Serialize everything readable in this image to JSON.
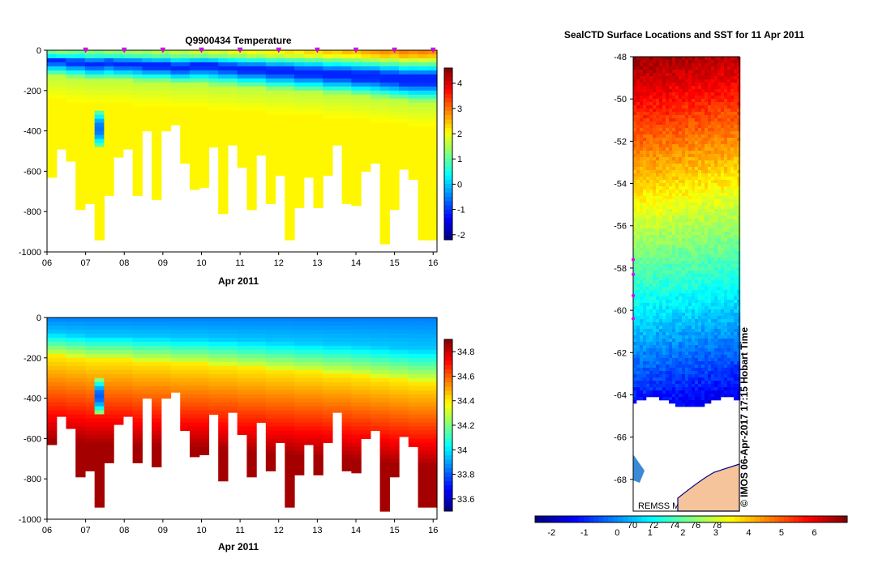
{
  "chart_data": [
    {
      "type": "heatmap",
      "title": "Q9900434  Temperature",
      "xlabel": "Apr 2011",
      "x_ticks": [
        "06",
        "07",
        "08",
        "09",
        "10",
        "11",
        "12",
        "13",
        "14",
        "15",
        "16"
      ],
      "x_range": [
        6,
        16.1
      ],
      "y_ticks": [
        "0",
        "-200",
        "-400",
        "-600",
        "-800",
        "-1000"
      ],
      "y_range": [
        -1000,
        0
      ],
      "colorbar_ticks": [
        "4",
        "3",
        "2",
        "1",
        "0",
        "-1",
        "-2"
      ],
      "colorbar_range": [
        -2.2,
        4.6
      ],
      "surface_markers_days": [
        7,
        8,
        9,
        10,
        11,
        12,
        13,
        14,
        15,
        16
      ],
      "profile_days": [
        6.05,
        6.3,
        6.55,
        6.8,
        7.05,
        7.3,
        7.55,
        7.8,
        8.05,
        8.3,
        8.55,
        8.8,
        9.05,
        9.3,
        9.55,
        9.8,
        10.05,
        10.3,
        10.55,
        10.8,
        11.05,
        11.3,
        11.55,
        11.8,
        12.05,
        12.3,
        12.55,
        12.8,
        13.05,
        13.3,
        13.55,
        13.8,
        14.05,
        14.3,
        14.55,
        14.8,
        15.05,
        15.3,
        15.55,
        15.8,
        16.05
      ],
      "profile_max_depths": [
        630,
        490,
        550,
        790,
        760,
        940,
        720,
        530,
        490,
        720,
        400,
        740,
        400,
        370,
        560,
        690,
        680,
        480,
        810,
        470,
        580,
        790,
        520,
        760,
        620,
        940,
        780,
        630,
        780,
        620,
        470,
        760,
        770,
        600,
        560,
        960,
        790,
        590,
        640,
        940,
        940
      ],
      "surface_temp": [
        1.0,
        1.2,
        1.1,
        1.0,
        1.2,
        1.1,
        1.3,
        1.2,
        1.3,
        1.4,
        1.3,
        1.5,
        1.4,
        1.6,
        1.5,
        1.7,
        1.6,
        1.8,
        1.7,
        1.9,
        1.8,
        2.0,
        1.9,
        2.1,
        2.0,
        2.2,
        2.1,
        2.3,
        2.2,
        2.4,
        2.3,
        2.5,
        2.4,
        2.6,
        2.7,
        2.8,
        2.7,
        2.9,
        2.8,
        2.9,
        2.8
      ],
      "mixed_depth": [
        60,
        60,
        70,
        70,
        80,
        80,
        70,
        80,
        80,
        80,
        90,
        90,
        90,
        100,
        100,
        90,
        90,
        90,
        100,
        100,
        110,
        110,
        110,
        120,
        120,
        120,
        130,
        130,
        130,
        140,
        140,
        140,
        150,
        150,
        150,
        160,
        160,
        170,
        170,
        170,
        170
      ],
      "thermocline_depth": [
        130,
        130,
        140,
        140,
        150,
        150,
        150,
        150,
        150,
        160,
        160,
        160,
        160,
        170,
        170,
        170,
        170,
        180,
        180,
        180,
        190,
        190,
        190,
        200,
        200,
        200,
        210,
        210,
        210,
        220,
        220,
        220,
        230,
        230,
        240,
        240,
        250,
        250,
        260,
        260,
        260
      ]
    },
    {
      "type": "heatmap",
      "title": "",
      "xlabel": "Apr 2011",
      "x_ticks": [
        "06",
        "07",
        "08",
        "09",
        "10",
        "11",
        "12",
        "13",
        "14",
        "15",
        "16"
      ],
      "y_ticks": [
        "0",
        "-200",
        "-400",
        "-600",
        "-800",
        "-1000"
      ],
      "y_range": [
        -1000,
        0
      ],
      "colorbar_ticks": [
        "34.8",
        "34.6",
        "34.4",
        "34.2",
        "34",
        "33.8",
        "33.6"
      ],
      "colorbar_range": [
        33.5,
        34.9
      ]
    },
    {
      "type": "heatmap",
      "title": "SealCTD Surface Locations and SST for 11 Apr 2011",
      "y_ticks": [
        "-48",
        "-50",
        "-52",
        "-54",
        "-56",
        "-58",
        "-60",
        "-62",
        "-64",
        "-66",
        "-68"
      ],
      "y_range": [
        -69.5,
        -48
      ],
      "colorbar_ticks": [
        "-2",
        "-1",
        "0",
        "1",
        "2",
        "3",
        "4",
        "5",
        "6"
      ],
      "colorbar_range": [
        -2.5,
        7
      ],
      "colorbar_overlay_ticks": [
        "70",
        "72",
        "74",
        "76",
        "78"
      ],
      "source_label": "REMSS MW-IR SST °C",
      "credit": "© IMOS 06-Apr-2017 17:15 Hobart Time"
    }
  ]
}
